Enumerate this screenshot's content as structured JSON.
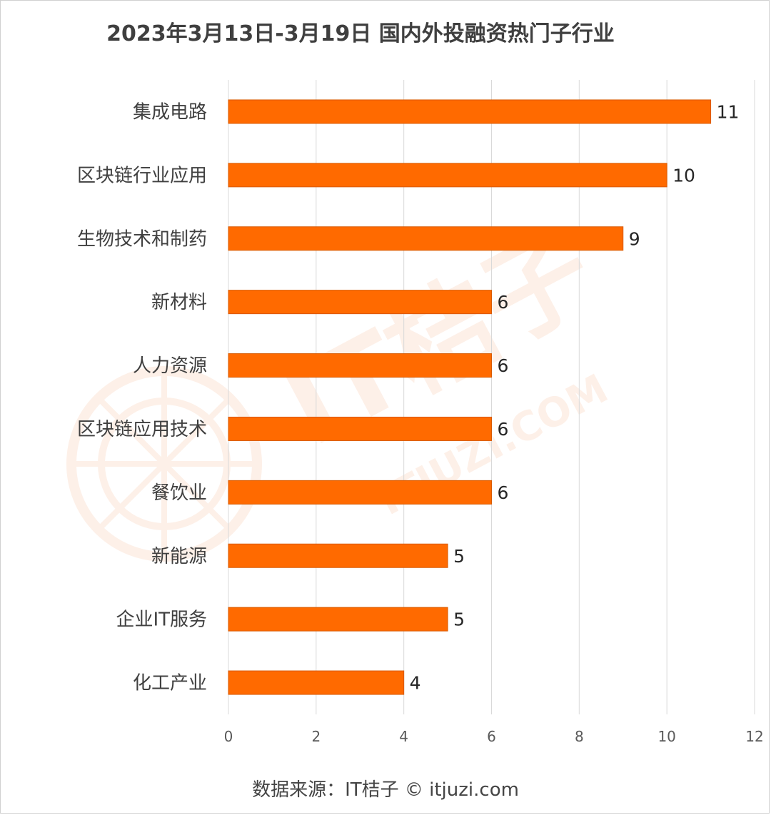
{
  "page": {
    "title": "2023年3月13日-3月19日 国内外投融资热门子行业",
    "source": "数据来源：IT桔子 © itjuzi.com",
    "watermark": "IT桔子 ITJUZI.COM"
  },
  "colors": {
    "bar": "#ff6a00",
    "bar_edge": "#d95a00",
    "grid": "#d9d9d9",
    "watermark": "#fbe6dc"
  },
  "chart_data": {
    "type": "bar",
    "orientation": "horizontal",
    "title": "2023年3月13日-3月19日 国内外投融资热门子行业",
    "categories": [
      "集成电路",
      "区块链行业应用",
      "生物技术和制药",
      "新材料",
      "人力资源",
      "区块链应用技术",
      "餐饮业",
      "新能源",
      "企业IT服务",
      "化工产业"
    ],
    "values": [
      11,
      10,
      9,
      6,
      6,
      6,
      6,
      5,
      5,
      4
    ],
    "xlim": [
      0,
      12
    ],
    "xticks": [
      0,
      2,
      4,
      6,
      8,
      10,
      12
    ],
    "grid": true,
    "data_labels": true,
    "legend": "none"
  }
}
